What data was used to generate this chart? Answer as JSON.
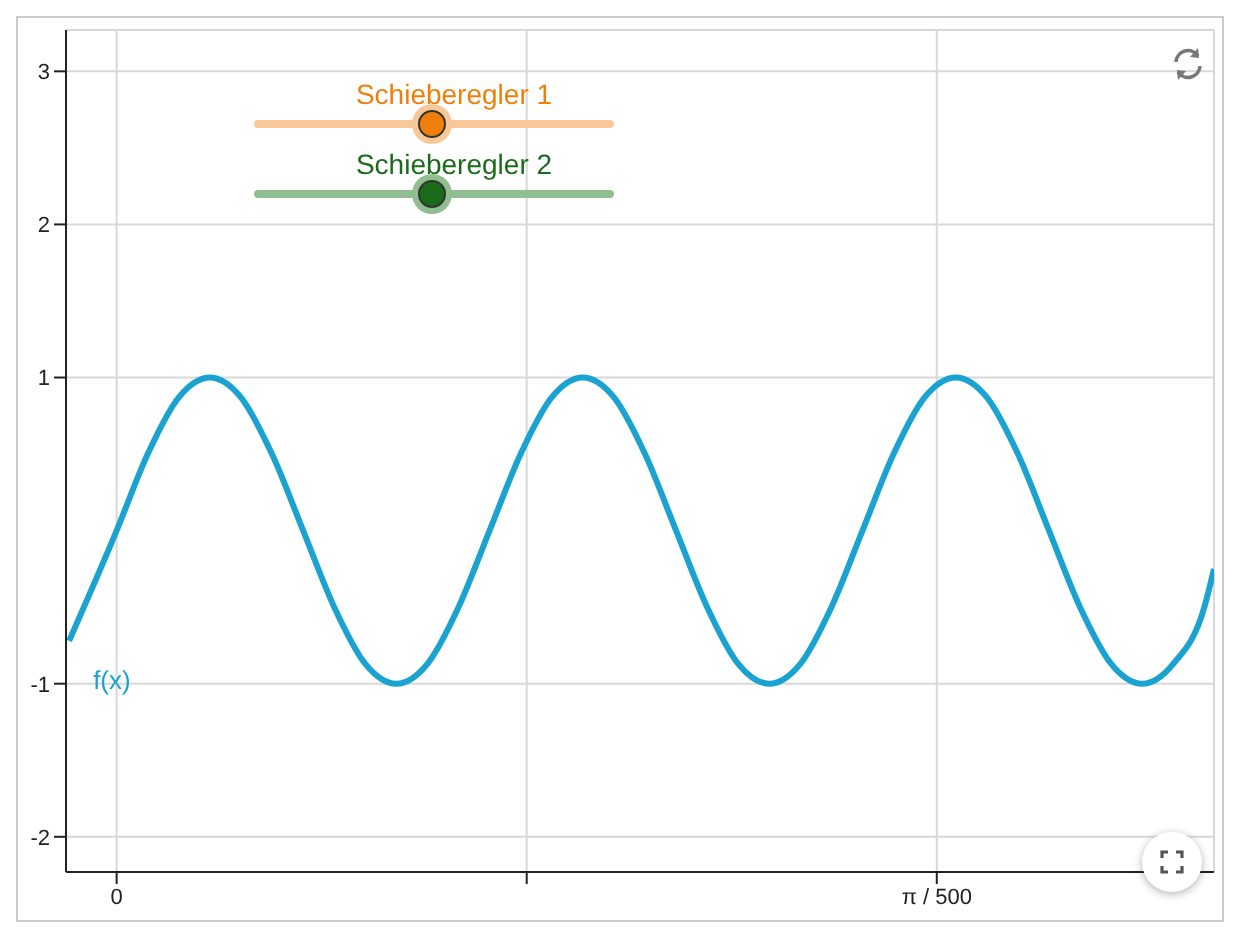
{
  "chart_data": {
    "type": "line",
    "x": [
      -0.000364,
      0,
      0.000238,
      0.000476,
      0.000714,
      0.000952,
      0.00119,
      0.001429,
      0.001667,
      0.001905,
      0.002143,
      0.002381,
      0.002619,
      0.002857,
      0.003095,
      0.003333,
      0.003571,
      0.00381,
      0.004048,
      0.004286,
      0.004524,
      0.004762,
      0.005,
      0.005238,
      0.005476,
      0.005714,
      0.005952,
      0.00619,
      0.006429,
      0.006667,
      0.006905,
      0.007143,
      0.007381,
      0.007619,
      0.007857,
      0.008095,
      0.008333,
      0.008407
    ],
    "series": [
      {
        "name": "f(x)",
        "color": "#1aa3d1",
        "values": [
          -0.72,
          0,
          0.5,
          0.87,
          1,
          0.87,
          0.5,
          0,
          -0.5,
          -0.87,
          -1,
          -0.87,
          -0.5,
          0,
          0.5,
          0.87,
          1,
          0.87,
          0.5,
          0,
          -0.5,
          -0.87,
          -1,
          -0.87,
          -0.5,
          0,
          0.5,
          0.87,
          1,
          0.87,
          0.5,
          0,
          -0.5,
          -0.87,
          -1,
          -0.87,
          -0.5,
          -0.25
        ]
      }
    ],
    "xlim": [
      -0.000388,
      0.008407
    ],
    "xticks": [
      {
        "value": 0,
        "label": "0"
      },
      {
        "value": 0.0031416,
        "label": null
      },
      {
        "value": 0.0062832,
        "label": "π / 500"
      }
    ],
    "ylim": [
      -2.23,
      3.27
    ],
    "yticks": [
      -2,
      -1,
      1,
      2,
      3
    ],
    "grid": true,
    "marker": "none",
    "line_style": "solid",
    "annotations": [
      "Schieberegler 1",
      "Schieberegler 2"
    ]
  }
}
